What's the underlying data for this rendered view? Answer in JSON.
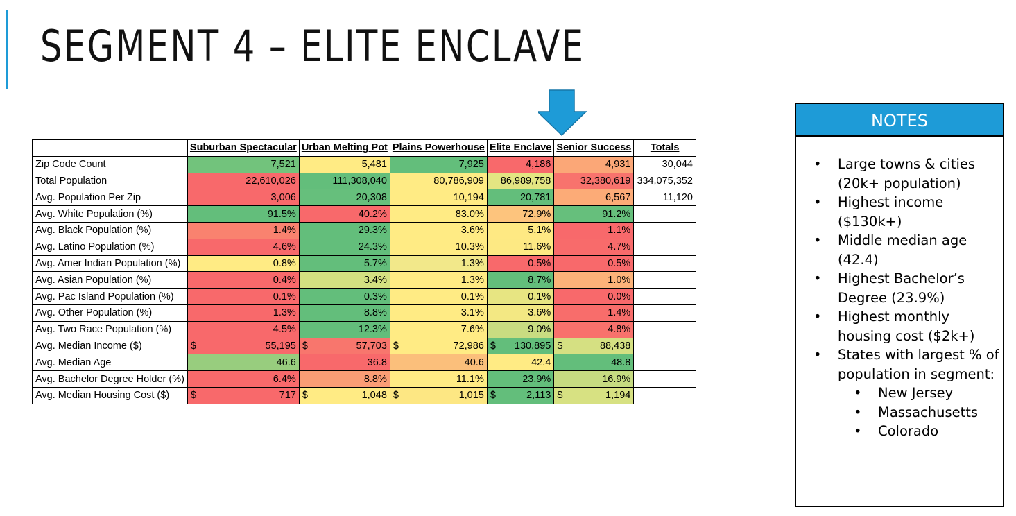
{
  "header": {
    "title": "SEGMENT 4 – ELITE ENCLAVE"
  },
  "table": {
    "columns": [
      "Suburban Spectacular",
      "Urban Melting Pot",
      "Plains Powerhouse",
      "Elite Enclave",
      "Senior Success",
      "Totals"
    ],
    "rows": [
      {
        "label": "Zip Code Count",
        "cells": [
          "7,521",
          "5,481",
          "7,925",
          "4,186",
          "4,931"
        ],
        "total": "30,044",
        "colors": [
          "#72c37c",
          "#ffeb84",
          "#63be7b",
          "#f8696b",
          "#fba777"
        ]
      },
      {
        "label": "Total Population",
        "cells": [
          "22,610,026",
          "111,308,040",
          "80,786,909",
          "86,989,758",
          "32,380,619"
        ],
        "total": "334,075,352",
        "colors": [
          "#f8696b",
          "#63be7b",
          "#ffeb84",
          "#e3e582",
          "#f8736d"
        ]
      },
      {
        "label": "Avg. Population Per Zip",
        "cells": [
          "3,006",
          "20,308",
          "10,194",
          "20,781",
          "6,567"
        ],
        "total": "11,120",
        "colors": [
          "#f8696b",
          "#66bf7c",
          "#ffeb84",
          "#63be7b",
          "#fcab77"
        ]
      },
      {
        "label": "Avg. White Population (%)",
        "cells": [
          "91.5%",
          "40.2%",
          "83.0%",
          "72.9%",
          "91.2%"
        ],
        "colors": [
          "#63be7b",
          "#f8696b",
          "#ffeb84",
          "#fdc47d",
          "#66bf7c"
        ]
      },
      {
        "label": "Avg. Black Population (%)",
        "cells": [
          "1.4%",
          "29.3%",
          "3.6%",
          "5.1%",
          "1.1%"
        ],
        "colors": [
          "#f9826f",
          "#63be7b",
          "#ffeb84",
          "#fee983",
          "#f8696b"
        ]
      },
      {
        "label": "Avg. Latino Population (%)",
        "cells": [
          "4.6%",
          "24.3%",
          "10.3%",
          "11.6%",
          "4.7%"
        ],
        "colors": [
          "#f8696b",
          "#63be7b",
          "#ffeb84",
          "#fde983",
          "#f86b6b"
        ]
      },
      {
        "label": "Avg. Amer Indian Population (%)",
        "cells": [
          "0.8%",
          "5.7%",
          "1.3%",
          "0.5%",
          "0.5%"
        ],
        "colors": [
          "#ffeb84",
          "#63be7b",
          "#f2e88a",
          "#f8696b",
          "#f8696b"
        ]
      },
      {
        "label": "Avg. Asian Population (%)",
        "cells": [
          "0.4%",
          "3.4%",
          "1.3%",
          "8.7%",
          "1.0%"
        ],
        "colors": [
          "#f8696b",
          "#d4e081",
          "#ffeb84",
          "#63be7b",
          "#fcb279"
        ]
      },
      {
        "label": "Avg. Pac Island Population (%)",
        "cells": [
          "0.1%",
          "0.3%",
          "0.1%",
          "0.1%",
          "0.0%"
        ],
        "colors": [
          "#f8696b",
          "#63be7b",
          "#ffeb84",
          "#e7e582",
          "#f8696b"
        ]
      },
      {
        "label": "Avg. Other Population (%)",
        "cells": [
          "1.3%",
          "8.8%",
          "3.1%",
          "3.6%",
          "1.4%"
        ],
        "colors": [
          "#f8696b",
          "#63be7b",
          "#ffeb84",
          "#f3e883",
          "#f86d6b"
        ]
      },
      {
        "label": "Avg. Two Race Population (%)",
        "cells": [
          "4.5%",
          "12.3%",
          "7.6%",
          "9.0%",
          "4.8%"
        ],
        "colors": [
          "#f8696b",
          "#63be7b",
          "#ffeb84",
          "#c9dc81",
          "#f8716c"
        ]
      },
      {
        "label": "Avg. Median Income ($)",
        "currency": "$",
        "cells": [
          "55,195",
          "57,703",
          "72,986",
          "130,895",
          "88,438"
        ],
        "colors": [
          "#f8696b",
          "#f8766d",
          "#ffeb84",
          "#63be7b",
          "#d5e082"
        ]
      },
      {
        "label": "Avg. Median Age",
        "cells": [
          "46.6",
          "36.8",
          "40.6",
          "42.4",
          "48.8"
        ],
        "colors": [
          "#98cd7e",
          "#f8696b",
          "#fbbf7b",
          "#ffeb84",
          "#63be7b"
        ]
      },
      {
        "label": "Avg. Bachelor Degree Holder (%)",
        "cells": [
          "6.4%",
          "8.8%",
          "11.1%",
          "23.9%",
          "16.9%"
        ],
        "colors": [
          "#f8696b",
          "#fa9d75",
          "#ffeb84",
          "#63be7b",
          "#c6db81"
        ]
      },
      {
        "label": "Avg. Median Housing Cost ($)",
        "currency": "$",
        "cells": [
          "717",
          "1,048",
          "1,015",
          "2,113",
          "1,194"
        ],
        "colors": [
          "#f8696b",
          "#ffeb84",
          "#fde783",
          "#63be7b",
          "#d7e182"
        ]
      }
    ]
  },
  "notes": {
    "title": "NOTES",
    "items": [
      {
        "text": "Large towns & cities (20k+ population)"
      },
      {
        "text": "Highest income ($130k+)"
      },
      {
        "text": "Middle median age (42.4)"
      },
      {
        "text": "Highest Bachelor’s Degree (23.9%)"
      },
      {
        "text": "Highest monthly housing cost ($2k+)"
      },
      {
        "text": "States with largest % of population in segment:",
        "sub": [
          "New Jersey",
          "Massachusetts",
          "Colorado"
        ]
      }
    ]
  }
}
